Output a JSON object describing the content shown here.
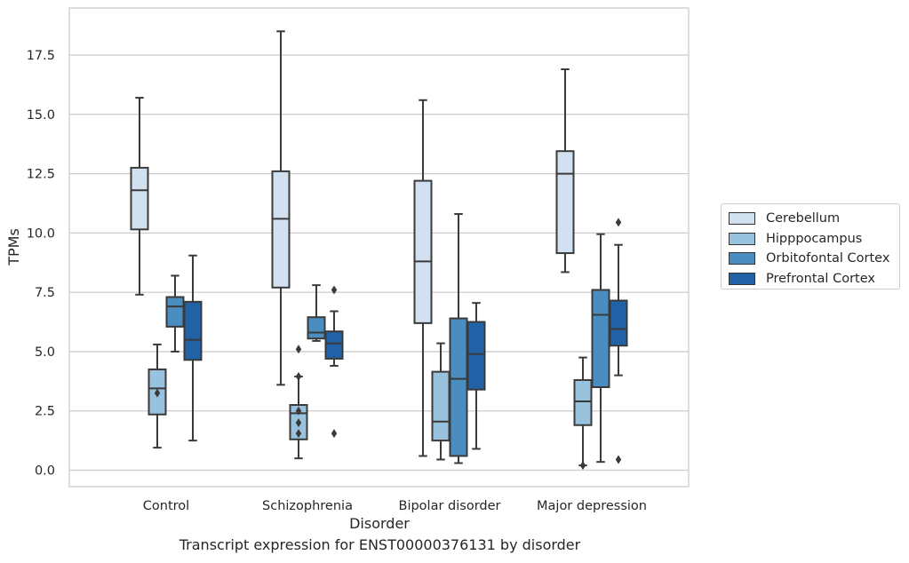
{
  "caption": "Transcript expression for ENST00000376131 by disorder",
  "chart_data": {
    "type": "box",
    "xlabel": "Disorder",
    "ylabel": "TPMs",
    "ylim": [
      -0.65,
      18.9
    ],
    "yticks": [
      0.0,
      2.5,
      5.0,
      7.5,
      10.0,
      12.5,
      15.0,
      17.5
    ],
    "ytick_labels": [
      "0.0",
      "2.5",
      "5.0",
      "7.5",
      "10.0",
      "12.5",
      "15.0",
      "17.5"
    ],
    "grid": "horizontal",
    "legend_position": "right",
    "categories": [
      "Control",
      "Schizophrenia",
      "Bipolar disorder",
      "Major depression"
    ],
    "series": [
      {
        "name": "Cerebellum",
        "color": "#d2e1f0",
        "boxes": [
          {
            "min": 7.4,
            "q1": 10.15,
            "median": 11.8,
            "q3": 12.75,
            "max": 15.7,
            "outliers": []
          },
          {
            "min": 3.6,
            "q1": 7.7,
            "median": 10.6,
            "q3": 12.6,
            "max": 18.5,
            "outliers": []
          },
          {
            "min": 0.6,
            "q1": 6.2,
            "median": 8.8,
            "q3": 12.2,
            "max": 15.6,
            "outliers": []
          },
          {
            "min": 8.35,
            "q1": 9.15,
            "median": 12.5,
            "q3": 13.45,
            "max": 16.9,
            "outliers": []
          }
        ]
      },
      {
        "name": "Hipppocampus",
        "color": "#99c2df",
        "boxes": [
          {
            "min": 0.95,
            "q1": 2.35,
            "median": 3.45,
            "q3": 4.25,
            "max": 5.3,
            "outliers": [
              3.25
            ]
          },
          {
            "min": 0.5,
            "q1": 1.3,
            "median": 2.4,
            "q3": 2.75,
            "max": 3.95,
            "outliers": [
              5.1,
              3.95,
              2.5,
              2.0,
              1.55
            ]
          },
          {
            "min": 0.45,
            "q1": 1.25,
            "median": 2.05,
            "q3": 4.15,
            "max": 5.35,
            "outliers": []
          },
          {
            "min": 0.2,
            "q1": 1.9,
            "median": 2.9,
            "q3": 3.8,
            "max": 4.75,
            "outliers": [
              0.2
            ]
          }
        ]
      },
      {
        "name": "Orbitofontal Cortex",
        "color": "#4a8ec1",
        "boxes": [
          {
            "min": 5.0,
            "q1": 6.05,
            "median": 6.9,
            "q3": 7.3,
            "max": 8.2,
            "outliers": []
          },
          {
            "min": 5.45,
            "q1": 5.55,
            "median": 5.8,
            "q3": 6.45,
            "max": 7.8,
            "outliers": []
          },
          {
            "min": 0.3,
            "q1": 0.6,
            "median": 3.85,
            "q3": 6.4,
            "max": 10.8,
            "outliers": []
          },
          {
            "min": 0.35,
            "q1": 3.5,
            "median": 6.55,
            "q3": 7.6,
            "max": 9.95,
            "outliers": []
          }
        ]
      },
      {
        "name": "Prefrontal Cortex",
        "color": "#2161a5",
        "boxes": [
          {
            "min": 1.25,
            "q1": 4.65,
            "median": 5.5,
            "q3": 7.1,
            "max": 9.05,
            "outliers": []
          },
          {
            "min": 4.4,
            "q1": 4.7,
            "median": 5.35,
            "q3": 5.85,
            "max": 6.7,
            "outliers": [
              7.6,
              1.55
            ]
          },
          {
            "min": 0.9,
            "q1": 3.4,
            "median": 4.9,
            "q3": 6.25,
            "max": 7.05,
            "outliers": []
          },
          {
            "min": 4.0,
            "q1": 5.25,
            "median": 5.95,
            "q3": 7.15,
            "max": 9.5,
            "outliers": [
              10.45,
              0.45
            ]
          }
        ]
      }
    ]
  }
}
